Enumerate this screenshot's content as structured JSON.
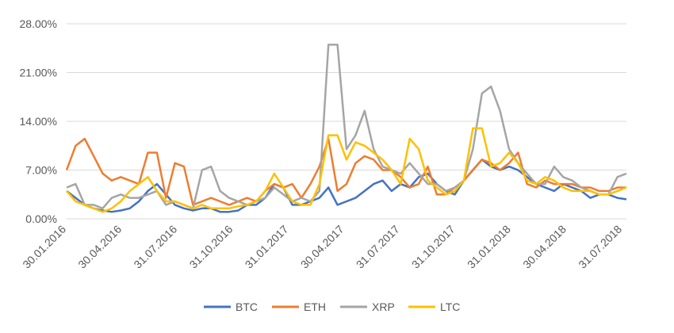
{
  "chart_data": {
    "type": "line",
    "title": "",
    "xlabel": "",
    "ylabel": "",
    "ylim": [
      0,
      28
    ],
    "y_ticks": [
      "0.00%",
      "7.00%",
      "14.00%",
      "21.00%",
      "28.00%"
    ],
    "x_ticks": [
      "30.01.2016",
      "30.04.2016",
      "31.07.2016",
      "31.10.2016",
      "31.01.2017",
      "30.04.2017",
      "31.07.2017",
      "31.10.2017",
      "31.01.2018",
      "30.04.2018",
      "31.07.2018"
    ],
    "grid": "horizontal",
    "legend": "bottom",
    "x": [
      "30.01.2016",
      "15.02.2016",
      "01.03.2016",
      "15.03.2016",
      "01.04.2016",
      "15.04.2016",
      "30.04.2016",
      "15.05.2016",
      "01.06.2016",
      "15.06.2016",
      "01.07.2016",
      "15.07.2016",
      "31.07.2016",
      "15.08.2016",
      "01.09.2016",
      "15.09.2016",
      "01.10.2016",
      "15.10.2016",
      "31.10.2016",
      "15.11.2016",
      "01.12.2016",
      "15.12.2016",
      "01.01.2017",
      "15.01.2017",
      "31.01.2017",
      "15.02.2017",
      "01.03.2017",
      "15.03.2017",
      "01.04.2017",
      "15.04.2017",
      "30.04.2017",
      "15.05.2017",
      "01.06.2017",
      "15.06.2017",
      "01.07.2017",
      "15.07.2017",
      "31.07.2017",
      "15.08.2017",
      "01.09.2017",
      "15.09.2017",
      "01.10.2017",
      "15.10.2017",
      "31.10.2017",
      "15.11.2017",
      "01.12.2017",
      "15.12.2017",
      "01.01.2018",
      "15.01.2018",
      "31.01.2018",
      "15.02.2018",
      "01.03.2018",
      "15.03.2018",
      "01.04.2018",
      "15.04.2018",
      "30.04.2018",
      "15.05.2018",
      "01.06.2018",
      "15.06.2018",
      "01.07.2018",
      "15.07.2018",
      "31.07.2018",
      "15.08.2018",
      "31.08.2018"
    ],
    "series": [
      {
        "name": "BTC",
        "color": "#4472C4",
        "values": [
          4.0,
          3.0,
          2.0,
          1.5,
          1.2,
          1.0,
          1.2,
          1.5,
          2.5,
          4.0,
          5.0,
          3.5,
          2.0,
          1.5,
          1.2,
          1.5,
          1.5,
          1.0,
          1.0,
          1.2,
          2.0,
          2.0,
          3.0,
          5.0,
          4.5,
          2.0,
          2.0,
          2.5,
          3.0,
          4.5,
          2.0,
          2.5,
          3.0,
          4.0,
          5.0,
          5.5,
          4.0,
          5.0,
          4.5,
          6.0,
          6.5,
          5.0,
          4.0,
          3.5,
          5.5,
          7.0,
          8.5,
          7.5,
          7.0,
          7.5,
          7.0,
          6.0,
          5.0,
          4.5,
          4.0,
          5.0,
          4.5,
          4.0,
          3.0,
          3.5,
          3.5,
          3.0,
          2.8
        ]
      },
      {
        "name": "ETH",
        "color": "#ED7D31",
        "values": [
          7.0,
          10.5,
          11.5,
          9.0,
          6.5,
          5.5,
          6.0,
          5.5,
          5.0,
          9.5,
          9.5,
          3.0,
          8.0,
          7.5,
          2.0,
          2.5,
          3.0,
          2.5,
          2.0,
          2.5,
          3.0,
          2.5,
          4.0,
          5.0,
          4.5,
          5.0,
          3.0,
          5.0,
          7.5,
          11.5,
          4.0,
          5.0,
          8.0,
          9.0,
          8.5,
          7.0,
          7.0,
          6.0,
          4.5,
          5.0,
          7.5,
          3.5,
          3.5,
          4.5,
          5.5,
          7.0,
          8.5,
          8.0,
          7.0,
          8.0,
          9.5,
          5.0,
          4.5,
          5.5,
          5.0,
          5.0,
          5.0,
          4.5,
          4.5,
          4.0,
          4.0,
          4.5,
          4.5
        ]
      },
      {
        "name": "XRP",
        "color": "#A5A5A5",
        "values": [
          4.5,
          5.0,
          2.0,
          2.0,
          1.5,
          3.0,
          3.5,
          3.0,
          3.0,
          3.5,
          4.0,
          2.0,
          2.5,
          2.0,
          1.5,
          7.0,
          7.5,
          4.0,
          3.0,
          2.5,
          2.0,
          2.5,
          3.0,
          4.5,
          3.5,
          2.5,
          3.0,
          2.5,
          4.0,
          25.0,
          25.0,
          10.0,
          12.0,
          15.5,
          10.0,
          7.5,
          7.0,
          6.5,
          8.0,
          6.5,
          5.0,
          5.0,
          4.0,
          4.5,
          5.5,
          10.0,
          18.0,
          19.0,
          15.5,
          10.0,
          8.0,
          6.5,
          5.0,
          5.0,
          7.5,
          6.0,
          5.5,
          4.5,
          4.0,
          3.5,
          3.5,
          6.0,
          6.5
        ]
      },
      {
        "name": "LTC",
        "color": "#FFC000",
        "values": [
          4.0,
          2.5,
          2.0,
          1.5,
          1.0,
          1.5,
          2.5,
          4.0,
          5.0,
          6.0,
          4.0,
          2.5,
          2.5,
          2.0,
          1.5,
          2.0,
          1.5,
          1.5,
          1.5,
          1.8,
          2.0,
          2.5,
          4.0,
          6.5,
          4.5,
          2.5,
          2.0,
          2.0,
          5.0,
          12.0,
          12.0,
          8.5,
          11.0,
          10.5,
          9.5,
          8.5,
          7.0,
          5.0,
          11.5,
          10.0,
          5.5,
          4.5,
          3.5,
          4.0,
          5.5,
          13.0,
          13.0,
          7.5,
          8.0,
          9.5,
          8.0,
          5.5,
          5.0,
          6.0,
          5.5,
          4.5,
          4.0,
          4.0,
          4.0,
          3.5,
          3.5,
          4.0,
          4.5
        ]
      }
    ]
  }
}
